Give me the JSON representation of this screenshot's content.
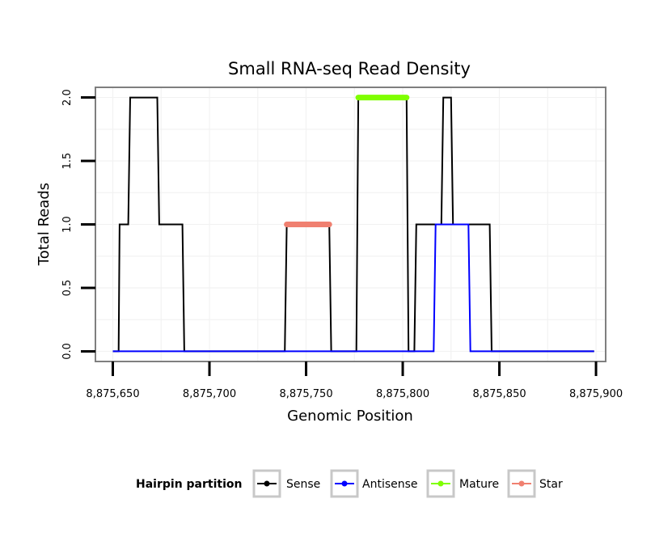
{
  "chart_data": {
    "type": "line",
    "title": "Small RNA-seq Read Density",
    "xlabel": "Genomic Position",
    "ylabel": "Total Reads",
    "xlim": [
      8875641,
      8875905
    ],
    "ylim": [
      -0.08,
      2.08
    ],
    "xticks": [
      8875650,
      8875700,
      8875750,
      8875800,
      8875850,
      8875900
    ],
    "xtick_labels": [
      "8,875,650",
      "8,875,700",
      "8,875,750",
      "8,875,800",
      "8,875,850",
      "8,875,900"
    ],
    "yticks": [
      0.0,
      0.5,
      1.0,
      1.5,
      2.0
    ],
    "ytick_labels": [
      "0.0",
      "0.5",
      "1.0",
      "1.5",
      "2.0"
    ],
    "grid": true,
    "legend": {
      "title": "Hairpin partition",
      "position": "bottom",
      "entries": [
        "Sense",
        "Antisense",
        "Mature",
        "Star"
      ]
    },
    "series": [
      {
        "name": "Sense",
        "color": "#000000",
        "x": [
          8875650,
          8875653,
          8875653.5,
          8875658,
          8875659,
          8875673,
          8875674,
          8875686,
          8875687,
          8875739,
          8875740,
          8875762,
          8875763,
          8875776,
          8875777,
          8875802,
          8875803,
          8875806,
          8875807,
          8875820,
          8875821,
          8875825,
          8875826,
          8875845,
          8875846,
          8875899
        ],
        "values": [
          0,
          0,
          1,
          1,
          2,
          2,
          1,
          1,
          0,
          0,
          1,
          1,
          0,
          0,
          2,
          2,
          0,
          0,
          1,
          1,
          2,
          2,
          1,
          1,
          0,
          0
        ]
      },
      {
        "name": "Antisense",
        "color": "#0000ff",
        "x": [
          8875650,
          8875816,
          8875817,
          8875834,
          8875835,
          8875899
        ],
        "values": [
          0,
          0,
          1,
          1,
          0,
          0
        ]
      },
      {
        "name": "Mature",
        "color": "#7fff00",
        "x": [
          8875777,
          8875802
        ],
        "values": [
          2,
          2
        ]
      },
      {
        "name": "Star",
        "color": "#f08070",
        "x": [
          8875740,
          8875762
        ],
        "values": [
          1,
          1
        ]
      }
    ]
  }
}
